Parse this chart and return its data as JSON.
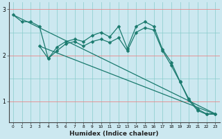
{
  "background_color": "#cce8f0",
  "grid_color_red": "#e88888",
  "grid_color_teal": "#88cccc",
  "line_color": "#1a7a6e",
  "xlabel": "Humidex (Indice chaleur)",
  "xlabel_fontsize": 6.5,
  "xlim": [
    -0.5,
    23.5
  ],
  "ylim": [
    0.55,
    3.15
  ],
  "yticks": [
    1,
    2,
    3
  ],
  "xticks": [
    0,
    1,
    2,
    3,
    4,
    5,
    6,
    7,
    8,
    9,
    10,
    11,
    12,
    13,
    14,
    15,
    16,
    17,
    18,
    19,
    20,
    21,
    22,
    23
  ],
  "series_zigzag1": {
    "x": [
      0,
      1,
      2,
      3,
      4,
      5,
      6,
      7,
      8,
      9,
      10,
      11,
      12,
      13,
      14,
      15,
      16,
      17,
      18,
      19,
      20,
      21,
      22,
      23
    ],
    "y": [
      2.88,
      2.73,
      2.73,
      2.63,
      1.93,
      2.18,
      2.3,
      2.35,
      2.3,
      2.43,
      2.5,
      2.4,
      2.63,
      2.15,
      2.63,
      2.73,
      2.63,
      2.13,
      1.85,
      1.43,
      1.05,
      0.83,
      0.73,
      0.73
    ]
  },
  "series_zigzag2": {
    "x": [
      3,
      4,
      5,
      6,
      7,
      8,
      9,
      10,
      11,
      12,
      13,
      14,
      15,
      16,
      17,
      18,
      19,
      20,
      21,
      22,
      23
    ],
    "y": [
      2.2,
      1.93,
      2.1,
      2.25,
      2.3,
      2.2,
      2.3,
      2.35,
      2.28,
      2.38,
      2.1,
      2.5,
      2.6,
      2.55,
      2.1,
      1.78,
      1.42,
      1.02,
      0.8,
      0.72,
      0.72
    ]
  },
  "series_line1": {
    "x": [
      0,
      23
    ],
    "y": [
      2.88,
      0.73
    ]
  },
  "series_line2": {
    "x": [
      3,
      23
    ],
    "y": [
      2.2,
      0.72
    ]
  }
}
